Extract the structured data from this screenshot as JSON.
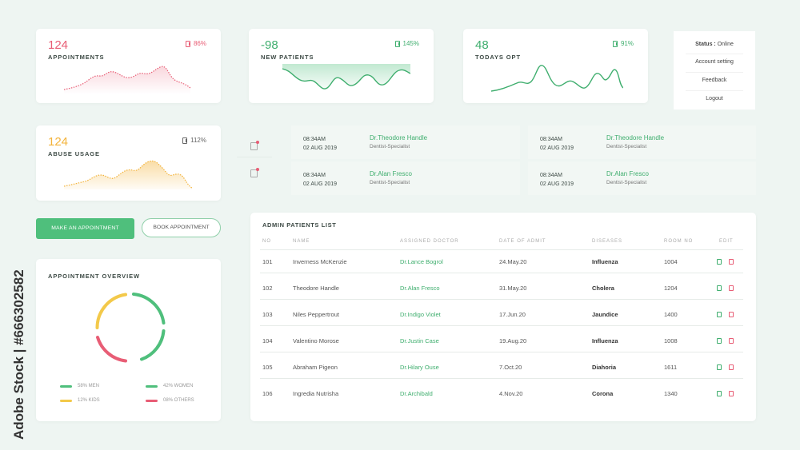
{
  "stats": [
    {
      "value": "124",
      "label": "APPOINTMENTS",
      "percent": "86%",
      "color": "#e85d75"
    },
    {
      "value": "-98",
      "label": "NEW PATIENTS",
      "percent": "145%",
      "color": "#3fae6e"
    },
    {
      "value": "48",
      "label": "TODAYS OPT",
      "percent": "91%",
      "color": "#3fae6e"
    },
    {
      "value": "124",
      "label": "ABUSE USAGE",
      "percent": "112%",
      "color": "#f3b33a"
    }
  ],
  "menu": {
    "status_label": "Status :",
    "status_value": "Online",
    "items": [
      "Account setting",
      "Feedback",
      "Logout"
    ]
  },
  "schedule": [
    {
      "time": "08:34AM",
      "date": "02 AUG 2019",
      "doctor": "Dr.Theodore Handle",
      "specialty": "Dentist-Specialist"
    },
    {
      "time": "08:34AM",
      "date": "02 AUG 2019",
      "doctor": "Dr.Theodore Handle",
      "specialty": "Dentist-Specialist"
    },
    {
      "time": "08:34AM",
      "date": "02 AUG 2019",
      "doctor": "Dr.Alan Fresco",
      "specialty": "Dentist-Specialist"
    },
    {
      "time": "08:34AM",
      "date": "02 AUG 2019",
      "doctor": "Dr.Alan Fresco",
      "specialty": "Dentist-Specialist"
    }
  ],
  "buttons": {
    "make": "MAKE AN APPOINTMENT",
    "book": "BOOK APPOINTMENT"
  },
  "overview": {
    "title": "APPOINTMENT OVERVIEW",
    "segments": [
      {
        "label": "58% MEN",
        "value": 58,
        "color": "#4fbf7c"
      },
      {
        "label": "42% WOMEN",
        "value": 42,
        "color": "#4fbf7c"
      },
      {
        "label": "12% KIDS",
        "value": 12,
        "color": "#f3c94a"
      },
      {
        "label": "08% OTHERS",
        "value": 8,
        "color": "#e85d75"
      }
    ]
  },
  "patients": {
    "title": "ADMIN PATIENTS LIST",
    "headers": [
      "NO",
      "NAME",
      "ASSIGNED DOCTOR",
      "DATE OF ADMIT",
      "DISEASES",
      "ROOM NO",
      "EDIT"
    ],
    "rows": [
      {
        "no": "101",
        "name": "Inverness McKenzie",
        "doctor": "Dr.Lance Bogrol",
        "date": "24.May.20",
        "disease": "Influenza",
        "room": "1004"
      },
      {
        "no": "102",
        "name": "Theodore Handle",
        "doctor": "Dr.Alan Fresco",
        "date": "31.May.20",
        "disease": "Cholera",
        "room": "1204"
      },
      {
        "no": "103",
        "name": "Niles Peppertrout",
        "doctor": "Dr.Indigo Violet",
        "date": "17.Jun.20",
        "disease": "Jaundice",
        "room": "1400"
      },
      {
        "no": "104",
        "name": "Valentino Morose",
        "doctor": "Dr.Justin Case",
        "date": "19.Aug.20",
        "disease": "Influenza",
        "room": "1008"
      },
      {
        "no": "105",
        "name": "Abraham Pigeon",
        "doctor": "Dr.Hilary Ouse",
        "date": "7.Oct.20",
        "disease": "Diahoria",
        "room": "1611"
      },
      {
        "no": "106",
        "name": "Ingredia Nutrisha",
        "doctor": "Dr.Archibald",
        "date": "4.Nov.20",
        "disease": "Corona",
        "room": "1340"
      }
    ]
  },
  "watermark": {
    "text": "Adobe Stock | #666302582"
  }
}
